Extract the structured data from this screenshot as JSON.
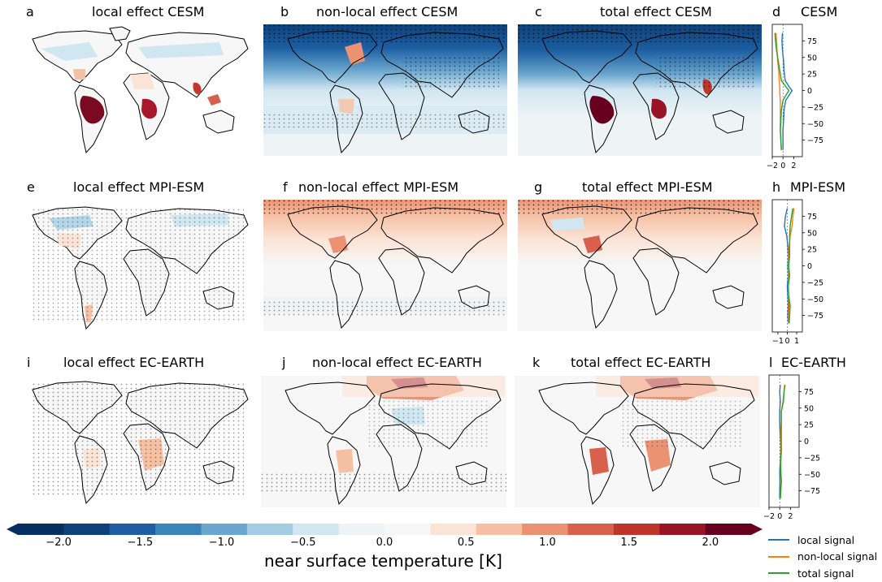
{
  "panels": [
    {
      "letter": "a",
      "title": "local effect CESM"
    },
    {
      "letter": "b",
      "title": "non-local effect CESM"
    },
    {
      "letter": "c",
      "title": "total effect CESM"
    },
    {
      "letter": "d",
      "title": "CESM"
    },
    {
      "letter": "e",
      "title": "local effect MPI-ESM"
    },
    {
      "letter": "f",
      "title": "non-local effect MPI-ESM"
    },
    {
      "letter": "g",
      "title": "total effect MPI-ESM"
    },
    {
      "letter": "h",
      "title": "MPI-ESM"
    },
    {
      "letter": "i",
      "title": "local effect EC-EARTH"
    },
    {
      "letter": "j",
      "title": "non-local effect EC-EARTH"
    },
    {
      "letter": "k",
      "title": "total effect EC-EARTH"
    },
    {
      "letter": "l",
      "title": "EC-EARTH"
    }
  ],
  "colorbar": {
    "label": "near surface temperature [K]",
    "ticks": [
      "−2.0",
      "−1.5",
      "−1.0",
      "−0.5",
      "0.0",
      "0.5",
      "1.0",
      "1.5",
      "2.0"
    ],
    "tick_values": [
      -2.0,
      -1.5,
      -1.0,
      -0.5,
      0.0,
      0.5,
      1.0,
      1.5,
      2.0
    ],
    "range": [
      -2.25,
      2.25
    ],
    "colors": [
      "#053061",
      "#0e4179",
      "#1d5fa2",
      "#3a84bb",
      "#6aa6cd",
      "#a2cde3",
      "#d0e6f1",
      "#eef3f6",
      "#f7f7f7",
      "#fbe3d6",
      "#f6c0a4",
      "#eb9273",
      "#d8604d",
      "#c0352b",
      "#9a1428",
      "#67001f"
    ]
  },
  "legend": [
    {
      "label": "local signal",
      "color": "#1f77b4"
    },
    {
      "label": "non-local signal",
      "color": "#ff7f0e"
    },
    {
      "label": "total signal",
      "color": "#2ca02c"
    }
  ],
  "chart_data": [
    {
      "type": "line",
      "model": "CESM",
      "xlim": [
        -2,
        3.6
      ],
      "ylim": [
        -100,
        100
      ],
      "xticks": [
        "−2",
        "0",
        "2"
      ],
      "xtick_values": [
        -2,
        0,
        2
      ],
      "yticks": [
        "75",
        "50",
        "25",
        "0",
        "−25",
        "−50",
        "−75"
      ],
      "ytick_values": [
        75,
        50,
        25,
        0,
        -25,
        -50,
        -75
      ],
      "lat": [
        -90,
        -75,
        -60,
        -45,
        -30,
        -15,
        -5,
        0,
        5,
        15,
        30,
        45,
        60,
        75,
        87
      ],
      "series": [
        {
          "name": "local signal",
          "values": [
            0,
            0,
            0,
            0.1,
            0.2,
            0.5,
            1.3,
            1.7,
            1.2,
            0.4,
            0.2,
            0.1,
            -0.1,
            -0.2,
            -0.1
          ]
        },
        {
          "name": "non-local signal",
          "values": [
            -0.3,
            -0.4,
            -0.5,
            -0.5,
            -0.5,
            -0.5,
            -0.6,
            -0.6,
            -0.6,
            -0.7,
            -0.8,
            -1.0,
            -1.1,
            -1.2,
            -1.3
          ]
        },
        {
          "name": "total signal",
          "values": [
            -0.3,
            -0.4,
            -0.5,
            -0.4,
            -0.3,
            0,
            0.7,
            1.1,
            0.6,
            -0.3,
            -0.6,
            -0.9,
            -1.2,
            -1.4,
            -1.5
          ]
        }
      ]
    },
    {
      "type": "line",
      "model": "MPI-ESM",
      "xlim": [
        -1.6,
        1.6
      ],
      "ylim": [
        -100,
        100
      ],
      "xticks": [
        "−1",
        "0",
        "1"
      ],
      "xtick_values": [
        -1,
        0,
        1
      ],
      "yticks": [
        "75",
        "50",
        "25",
        "0",
        "−25",
        "−50",
        "−75"
      ],
      "ytick_values": [
        75,
        50,
        25,
        0,
        -25,
        -50,
        -75
      ],
      "lat": [
        -87,
        -75,
        -60,
        -45,
        -30,
        -15,
        0,
        15,
        30,
        45,
        60,
        75,
        87
      ],
      "series": [
        {
          "name": "local signal",
          "values": [
            0.1,
            0.05,
            0.1,
            0.05,
            0,
            0.1,
            0.05,
            0.1,
            0.05,
            -0.05,
            -0.3,
            -0.2,
            0
          ]
        },
        {
          "name": "non-local signal",
          "values": [
            0.1,
            0.2,
            0.2,
            0.1,
            0.1,
            0.15,
            0.1,
            0.15,
            0.2,
            0.3,
            0.5,
            0.6,
            0.7
          ]
        },
        {
          "name": "total signal",
          "values": [
            0.2,
            0.25,
            0.3,
            0.15,
            0.1,
            0.25,
            0.15,
            0.25,
            0.25,
            0.25,
            0.3,
            0.45,
            0.6
          ]
        }
      ]
    },
    {
      "type": "line",
      "model": "EC-EARTH",
      "xlim": [
        -2,
        3.6
      ],
      "ylim": [
        -100,
        100
      ],
      "xticks": [
        "−2",
        "0",
        "2"
      ],
      "xtick_values": [
        -2,
        0,
        2
      ],
      "yticks": [
        "75",
        "50",
        "25",
        "0",
        "−25",
        "−50",
        "−75"
      ],
      "ytick_values": [
        75,
        50,
        25,
        0,
        -25,
        -50,
        -75
      ],
      "lat": [
        -87,
        -75,
        -60,
        -45,
        -30,
        -15,
        0,
        15,
        30,
        45,
        60,
        75,
        85
      ],
      "series": [
        {
          "name": "local signal",
          "values": [
            0,
            0,
            0.05,
            0,
            0.1,
            0.2,
            0.15,
            0.05,
            0,
            0,
            0.1,
            0,
            0.1
          ]
        },
        {
          "name": "non-local signal",
          "values": [
            0.1,
            0.2,
            0.3,
            0.2,
            0.1,
            0.2,
            0.2,
            0.2,
            0.3,
            0.3,
            0.6,
            0.8,
            0.9
          ]
        },
        {
          "name": "total signal",
          "values": [
            0.1,
            0.2,
            0.3,
            0.2,
            0.2,
            0.3,
            0.3,
            0.3,
            0.3,
            0.3,
            0.7,
            0.8,
            1.0
          ]
        }
      ]
    }
  ]
}
